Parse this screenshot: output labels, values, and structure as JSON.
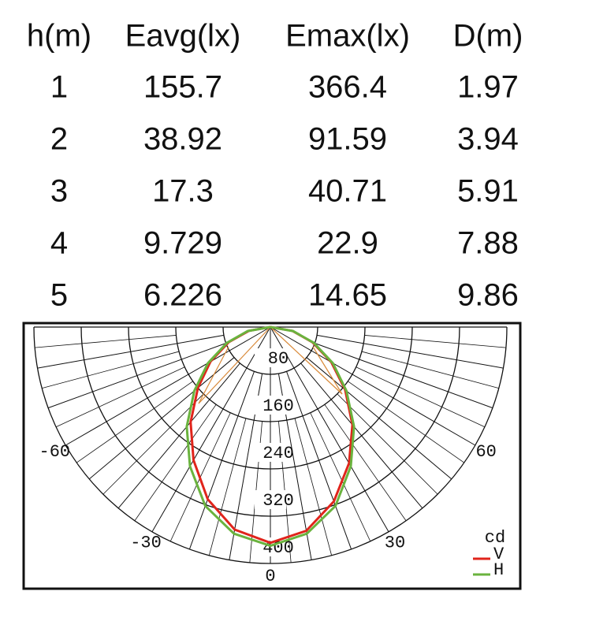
{
  "table": {
    "header": [
      "h(m)",
      "Eavg(lx)",
      "Emax(lx)",
      "D(m)"
    ],
    "rows": [
      [
        1,
        155.7,
        366.4,
        1.97
      ],
      [
        2,
        38.92,
        91.59,
        3.94
      ],
      [
        3,
        17.3,
        40.71,
        5.91
      ],
      [
        4,
        9.729,
        22.9,
        7.88
      ],
      [
        5,
        6.226,
        14.65,
        9.86
      ]
    ]
  },
  "chart_data": {
    "type": "polar",
    "unit": "cd",
    "rlim": [
      0,
      400
    ],
    "rticks": [
      80,
      160,
      240,
      320,
      400
    ],
    "angle_ticks": [
      -60,
      -30,
      0,
      30,
      60
    ],
    "series": [
      {
        "name": "V",
        "color": "#e0241b",
        "angles": [
          -90,
          -80,
          -70,
          -60,
          -50,
          -40,
          -30,
          -20,
          -10,
          0,
          10,
          20,
          30,
          40,
          50,
          60,
          70,
          80,
          90
        ],
        "values": [
          0,
          37,
          75,
          117,
          160,
          210,
          260,
          310,
          348,
          365,
          350,
          314,
          266,
          216,
          165,
          119,
          76,
          38,
          0
        ]
      },
      {
        "name": "H",
        "color": "#6ab33e",
        "angles": [
          -90,
          -80,
          -70,
          -60,
          -50,
          -40,
          -30,
          -20,
          -10,
          0,
          10,
          20,
          30,
          40,
          50,
          60,
          70,
          80,
          90
        ],
        "values": [
          0,
          39,
          78,
          122,
          168,
          220,
          272,
          322,
          355,
          370,
          355,
          322,
          272,
          220,
          168,
          122,
          78,
          39,
          0
        ]
      }
    ]
  }
}
